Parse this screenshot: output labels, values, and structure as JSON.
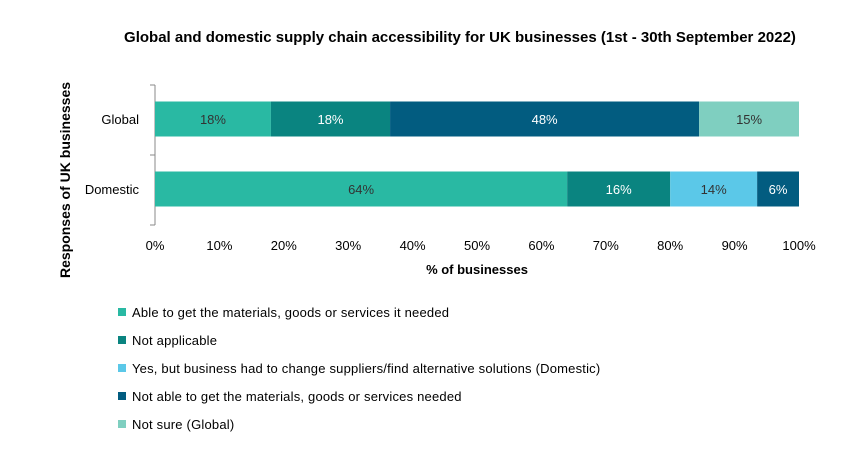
{
  "chart_data": {
    "type": "bar",
    "orientation": "horizontal",
    "stacked": true,
    "title": "Global and domestic supply chain accessibility for UK businesses (1st - 30th September 2022)",
    "xlabel": "% of businesses",
    "ylabel": "Responses of UK businesses",
    "categories": [
      "Global",
      "Domestic"
    ],
    "xlim": [
      0,
      100
    ],
    "x_ticks": [
      "0%",
      "10%",
      "20%",
      "30%",
      "40%",
      "50%",
      "60%",
      "70%",
      "80%",
      "90%",
      "100%"
    ],
    "grid": false,
    "legend_position": "bottom",
    "bars": [
      {
        "category": "Global",
        "segments": [
          {
            "series": "Able to get the materials, goods or services it needed",
            "value": 18,
            "label": "18%",
            "color": "#29B9A3",
            "label_color": "#333333"
          },
          {
            "series": "Not applicable",
            "value": 18.5,
            "label": "18%",
            "color": "#0A8480",
            "label_color": "#ffffff"
          },
          {
            "series": "Not able to get the materials, goods or services needed",
            "value": 48,
            "label": "48%",
            "color": "#025C80",
            "label_color": "#ffffff"
          },
          {
            "series": "Not sure (Global)",
            "value": 15.5,
            "label": "15%",
            "color": "#7FCFC0",
            "label_color": "#333333"
          }
        ]
      },
      {
        "category": "Domestic",
        "segments": [
          {
            "series": "Able to get the materials, goods or services it needed",
            "value": 64,
            "label": "64%",
            "color": "#29B9A3",
            "label_color": "#333333"
          },
          {
            "series": "Not applicable",
            "value": 16,
            "label": "16%",
            "color": "#0A8480",
            "label_color": "#ffffff"
          },
          {
            "series": "Yes, but  business had to change suppliers/find alternative solutions (Domestic)",
            "value": 13.5,
            "label": "14%",
            "color": "#5BC8E8",
            "label_color": "#333333"
          },
          {
            "series": "Not able to get the materials, goods or services needed",
            "value": 6.5,
            "label": "6%",
            "color": "#025C80",
            "label_color": "#ffffff"
          }
        ]
      }
    ],
    "legend": [
      {
        "name": "Able to get the materials, goods or services it needed",
        "color": "#29B9A3"
      },
      {
        "name": "Not applicable",
        "color": "#0A8480"
      },
      {
        "name": "Yes, but  business had to change suppliers/find alternative solutions (Domestic)",
        "color": "#5BC8E8"
      },
      {
        "name": "Not able to get the materials, goods or services needed",
        "color": "#025C80"
      },
      {
        "name": "Not sure (Global)",
        "color": "#7FCFC0"
      }
    ]
  }
}
